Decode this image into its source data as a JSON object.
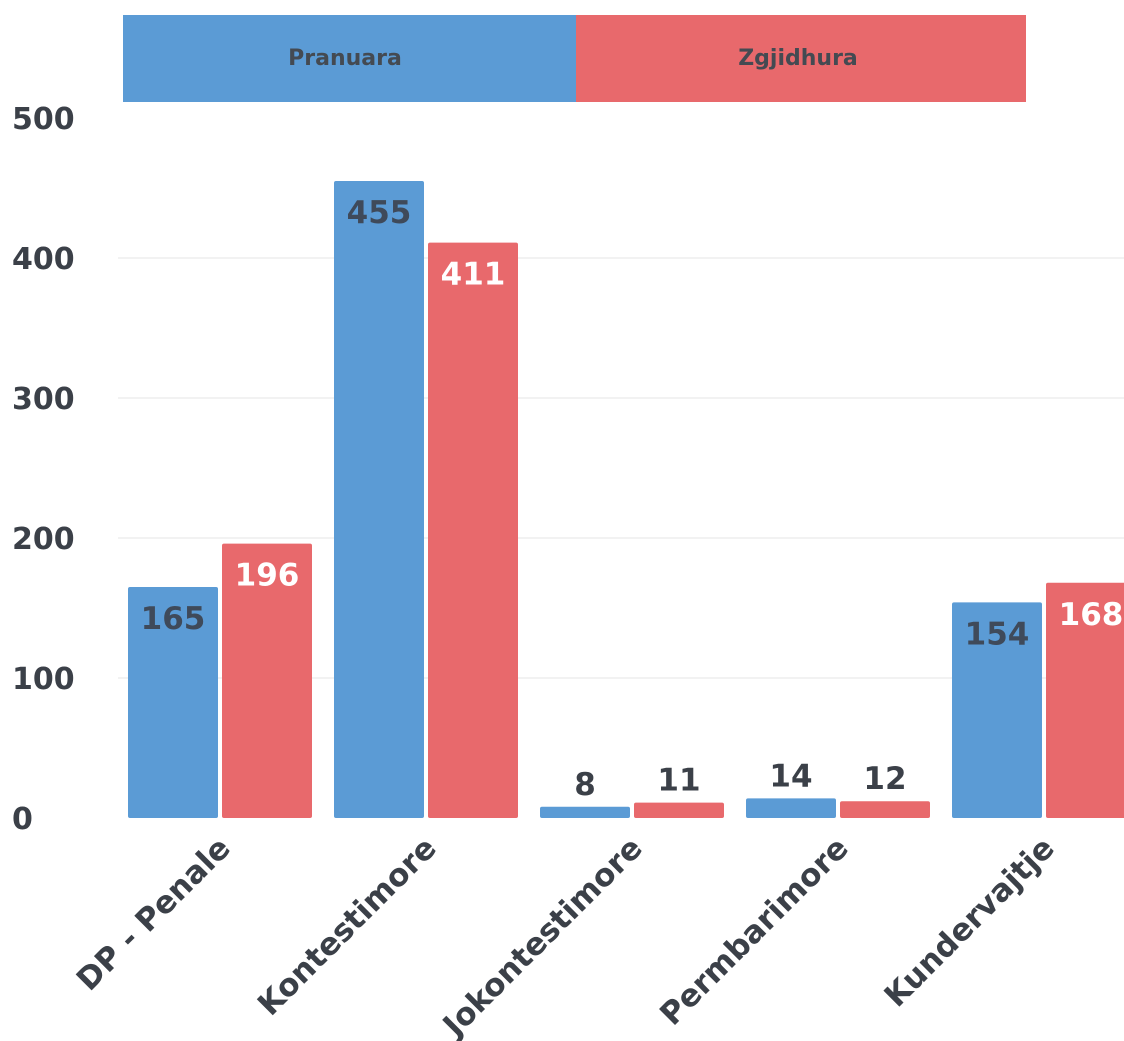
{
  "chart_data": {
    "type": "bar",
    "categories": [
      "DP - Penale",
      "Kontestimore",
      "Jokontestimore",
      "Permbarimore",
      "Kundervajtje"
    ],
    "series": [
      {
        "name": "Pranuara",
        "values": [
          165,
          455,
          8,
          14,
          154
        ],
        "color": "#5b9bd5"
      },
      {
        "name": "Zgjidhura",
        "values": [
          196,
          411,
          11,
          12,
          168
        ],
        "color": "#e8696c"
      }
    ],
    "ylim": [
      0,
      500
    ],
    "yticks": [
      0,
      100,
      200,
      300,
      400,
      500
    ],
    "grid": true,
    "legend_position": "top",
    "title": "",
    "xlabel": "",
    "ylabel": ""
  }
}
